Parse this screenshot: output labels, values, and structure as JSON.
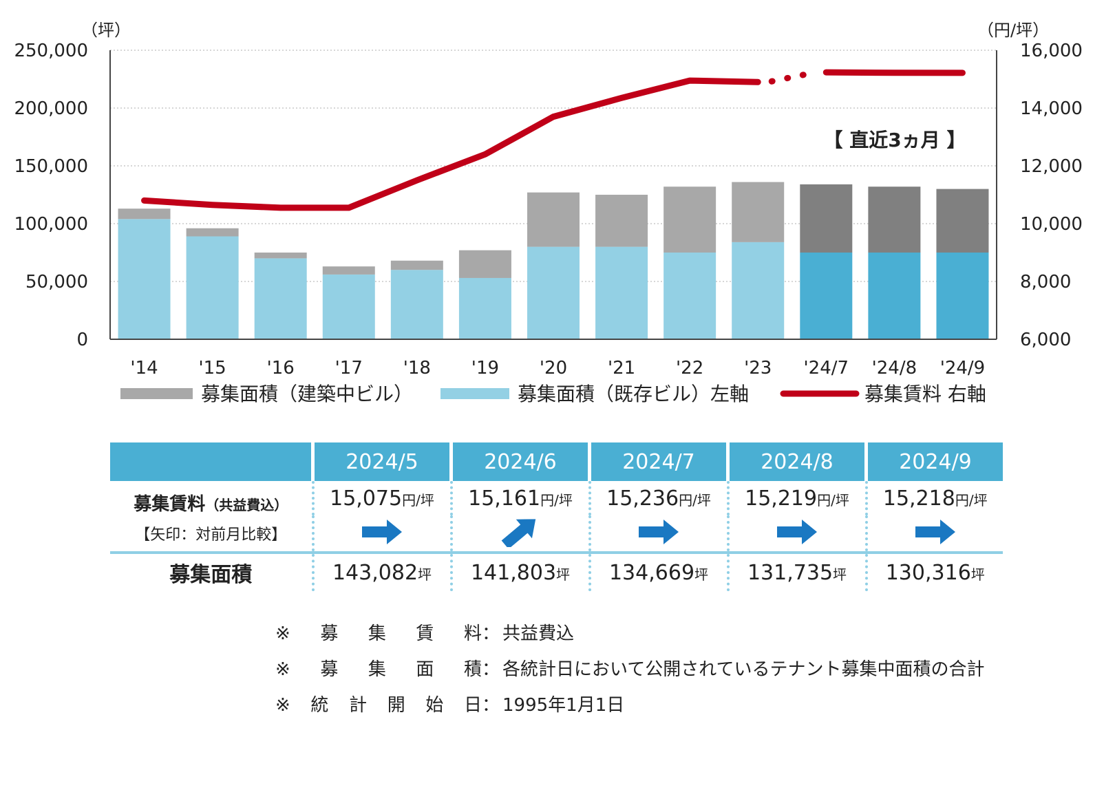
{
  "chart_data": {
    "type": "bar",
    "categories": [
      "'14",
      "'15",
      "'16",
      "'17",
      "'18",
      "'19",
      "'20",
      "'21",
      "'22",
      "'23",
      "'24/7",
      "'24/8",
      "'24/9"
    ],
    "series": [
      {
        "name": "募集面積（既存ビル）左軸",
        "values": [
          104000,
          89000,
          70000,
          56000,
          60000,
          53000,
          80000,
          80000,
          75000,
          84000,
          75000,
          75000,
          75000
        ],
        "axis": "left",
        "stacked": true,
        "color": "#93d0e4",
        "recent_color": "#4aafd3"
      },
      {
        "name": "募集面積（建築中ビル）",
        "values": [
          9000,
          7000,
          5000,
          7000,
          8000,
          24000,
          47000,
          45000,
          57000,
          52000,
          59000,
          57000,
          55000
        ],
        "axis": "left",
        "stacked": true,
        "color": "#a8a8a8",
        "recent_color": "#808080"
      },
      {
        "name": "募集賃料 右軸",
        "type": "line",
        "axis": "right",
        "values": [
          10800,
          10650,
          10550,
          10550,
          11500,
          12400,
          13700,
          14350,
          14950,
          14900,
          15236,
          15219,
          15218
        ],
        "color": "#c00018"
      }
    ],
    "ylim_left": [
      0,
      250000
    ],
    "ylim_right": [
      6000,
      16000
    ],
    "left_ticks": [
      "0",
      "50,000",
      "100,000",
      "150,000",
      "200,000",
      "250,000"
    ],
    "right_ticks": [
      "6,000",
      "8,000",
      "10,000",
      "12,000",
      "14,000",
      "16,000"
    ],
    "left_unit": "（坪）",
    "right_unit": "（円/坪）",
    "annotation": "【 直近3ヵ月 】",
    "grid": "horizontal dotted",
    "legend_position": "bottom"
  },
  "table": {
    "months": [
      "2024/5",
      "2024/6",
      "2024/7",
      "2024/8",
      "2024/9"
    ],
    "rent_label": "募集賃料",
    "rent_label_sub": "（共益費込）",
    "arrow_label": "【矢印：対前月比較】",
    "rent_values": [
      "15,075",
      "15,161",
      "15,236",
      "15,219",
      "15,218"
    ],
    "rent_unit": "円/坪",
    "arrows": [
      "flat",
      "up",
      "flat",
      "flat",
      "flat"
    ],
    "area_label": "募集面積",
    "area_values": [
      "143,082",
      "141,803",
      "134,669",
      "131,735",
      "130,316"
    ],
    "area_unit": "坪"
  },
  "notes": [
    {
      "key": [
        "※",
        "募",
        "集",
        "賃",
        "料"
      ],
      "value": "共益費込"
    },
    {
      "key": [
        "※",
        "募",
        "集",
        "面",
        "積"
      ],
      "value": "各統計日において公開されているテナント募集中面積の合計"
    },
    {
      "key": [
        "※",
        "統",
        "計",
        "開",
        "始",
        "日"
      ],
      "value": "1995年1月1日"
    }
  ],
  "separator": "："
}
